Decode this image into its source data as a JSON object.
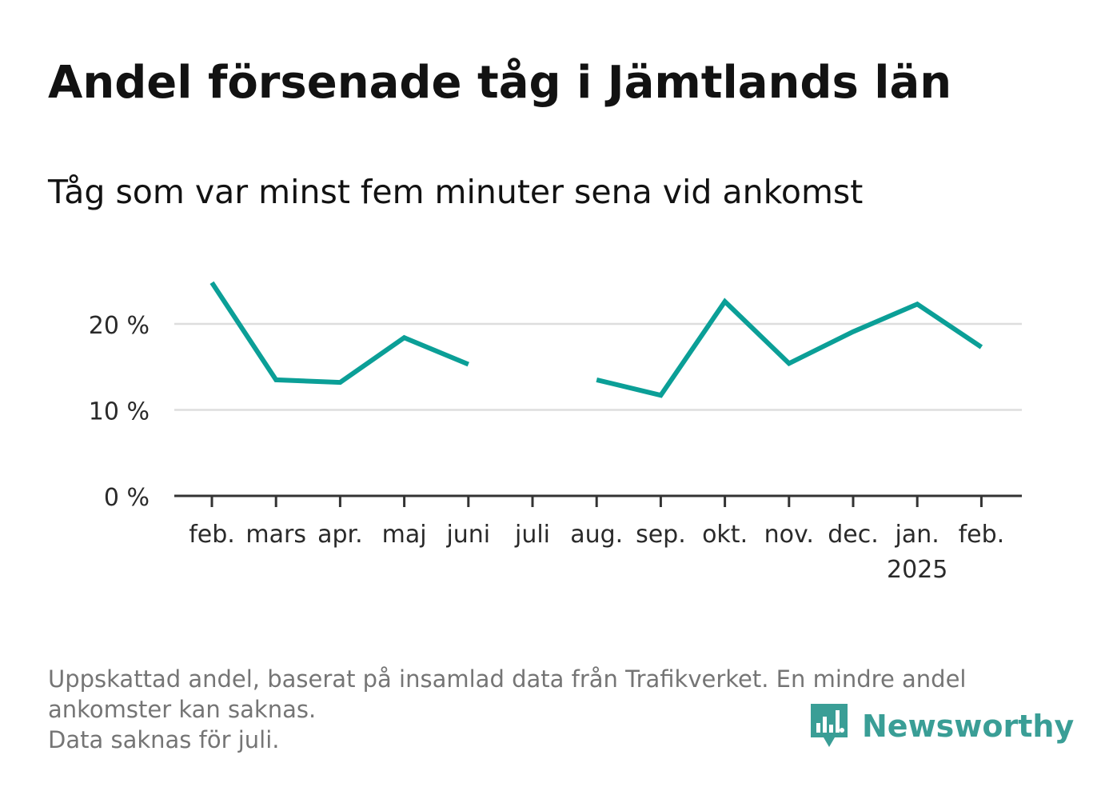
{
  "title": "Andel försenade tåg i Jämtlands län",
  "subtitle": "Tåg som var minst fem minuter sena vid ankomst",
  "chart_data": {
    "type": "line",
    "categories": [
      "feb.",
      "mars",
      "apr.",
      "maj",
      "juni",
      "juli",
      "aug.",
      "sep.",
      "okt.",
      "nov.",
      "dec.",
      "jan.",
      "feb."
    ],
    "year_labels": [
      "",
      "",
      "",
      "",
      "",
      "",
      "",
      "",
      "",
      "",
      "",
      "2025",
      ""
    ],
    "series": [
      {
        "values": [
          24.8,
          13.5,
          13.2,
          18.4,
          15.3,
          null,
          13.5,
          11.7,
          22.6,
          15.4,
          19.1,
          22.3,
          17.3
        ]
      }
    ],
    "yticks": [
      0,
      10,
      20
    ],
    "ytick_labels": [
      "0 %",
      "10 %",
      "20 %"
    ],
    "ylim": [
      0,
      28
    ],
    "grid": true,
    "line_color": "#0b9f97"
  },
  "footnote": {
    "line1": "Uppskattad andel, baserat på insamlad data från Trafikverket. En mindre andel",
    "line2": "ankomster kan saknas.",
    "line3": "Data saknas för juli."
  },
  "brand": {
    "name": "Newsworthy",
    "icon": "newsworthy-logo-icon",
    "color": "#3a9e96"
  }
}
